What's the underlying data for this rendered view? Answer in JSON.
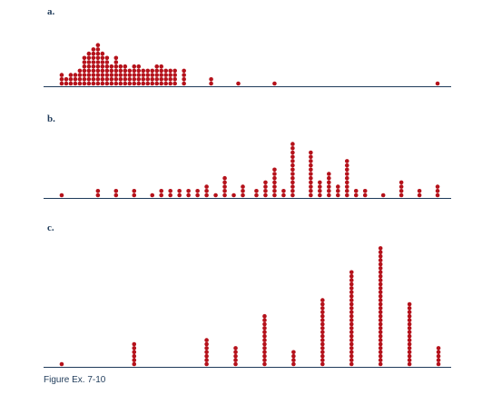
{
  "chart_data": [
    {
      "type": "dot",
      "title": "a.",
      "color": "#b5121b",
      "xlim": [
        0,
        90
      ],
      "x": [
        4,
        5,
        6,
        7,
        8,
        9,
        10,
        11,
        12,
        13,
        14,
        15,
        16,
        17,
        18,
        19,
        20,
        21,
        22,
        23,
        24,
        25,
        26,
        27,
        28,
        29,
        31,
        37,
        43,
        51,
        87
      ],
      "values": [
        3,
        2,
        3,
        3,
        4,
        7,
        8,
        9,
        10,
        8,
        7,
        5,
        7,
        5,
        5,
        4,
        5,
        5,
        4,
        4,
        4,
        5,
        5,
        4,
        4,
        4,
        4,
        2,
        1,
        1,
        1
      ]
    },
    {
      "type": "dot",
      "title": "b.",
      "color": "#b5121b",
      "xlim": [
        0,
        90
      ],
      "x": [
        4,
        12,
        16,
        20,
        24,
        26,
        28,
        30,
        32,
        34,
        36,
        38,
        40,
        42,
        44,
        47,
        49,
        51,
        53,
        55,
        59,
        61,
        63,
        65,
        67,
        69,
        71,
        75,
        79,
        83,
        87
      ],
      "values": [
        1,
        2,
        2,
        2,
        1,
        2,
        2,
        2,
        2,
        2,
        3,
        1,
        5,
        1,
        3,
        2,
        4,
        7,
        2,
        13,
        11,
        4,
        6,
        3,
        9,
        2,
        2,
        1,
        4,
        2,
        3
      ]
    },
    {
      "type": "dot",
      "title": "c.",
      "color": "#b5121b",
      "xlim": [
        0,
        90
      ],
      "x": [
        4,
        20,
        36,
        42.4,
        48.8,
        55.2,
        61.6,
        68,
        74.4,
        80.8,
        87.2
      ],
      "values": [
        1,
        6,
        7,
        5,
        13,
        4,
        17,
        24,
        30,
        16,
        5
      ]
    }
  ],
  "caption": "Figure Ex. 7-10"
}
